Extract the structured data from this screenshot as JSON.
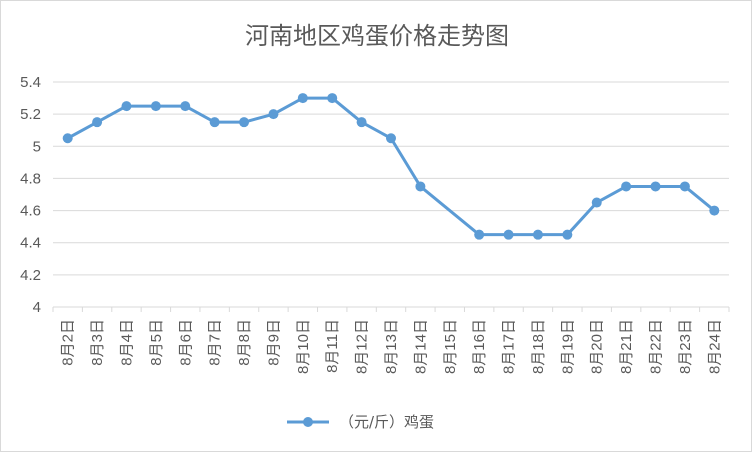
{
  "chart_data": {
    "type": "line",
    "title": "河南地区鸡蛋价格走势图",
    "categories": [
      "8月2日",
      "8月3日",
      "8月4日",
      "8月5日",
      "8月6日",
      "8月7日",
      "8月8日",
      "8月9日",
      "8月10日",
      "8月11日",
      "8月12日",
      "8月13日",
      "8月14日",
      "8月15日",
      "8月16日",
      "8月17日",
      "8月18日",
      "8月19日",
      "8月20日",
      "8月21日",
      "8月22日",
      "8月23日",
      "8月24日"
    ],
    "series": [
      {
        "name": "（元/斤）鸡蛋",
        "values": [
          5.05,
          5.15,
          5.25,
          5.25,
          5.25,
          5.15,
          5.15,
          5.2,
          5.3,
          5.3,
          5.15,
          5.05,
          4.75,
          null,
          4.45,
          4.45,
          4.45,
          4.45,
          4.65,
          4.75,
          4.75,
          4.75,
          4.6
        ]
      }
    ],
    "ylim": [
      4,
      5.4
    ],
    "yticks": [
      "4",
      "4.2",
      "4.4",
      "4.6",
      "4.8",
      "5",
      "5.2",
      "5.4"
    ],
    "ytick_values": [
      4,
      4.2,
      4.4,
      4.6,
      4.8,
      5,
      5.2,
      5.4
    ],
    "grid": true,
    "legend_position": "bottom",
    "line_color": "#5b9bd5",
    "grid_color": "#d9d9d9",
    "text_color": "#595959"
  }
}
